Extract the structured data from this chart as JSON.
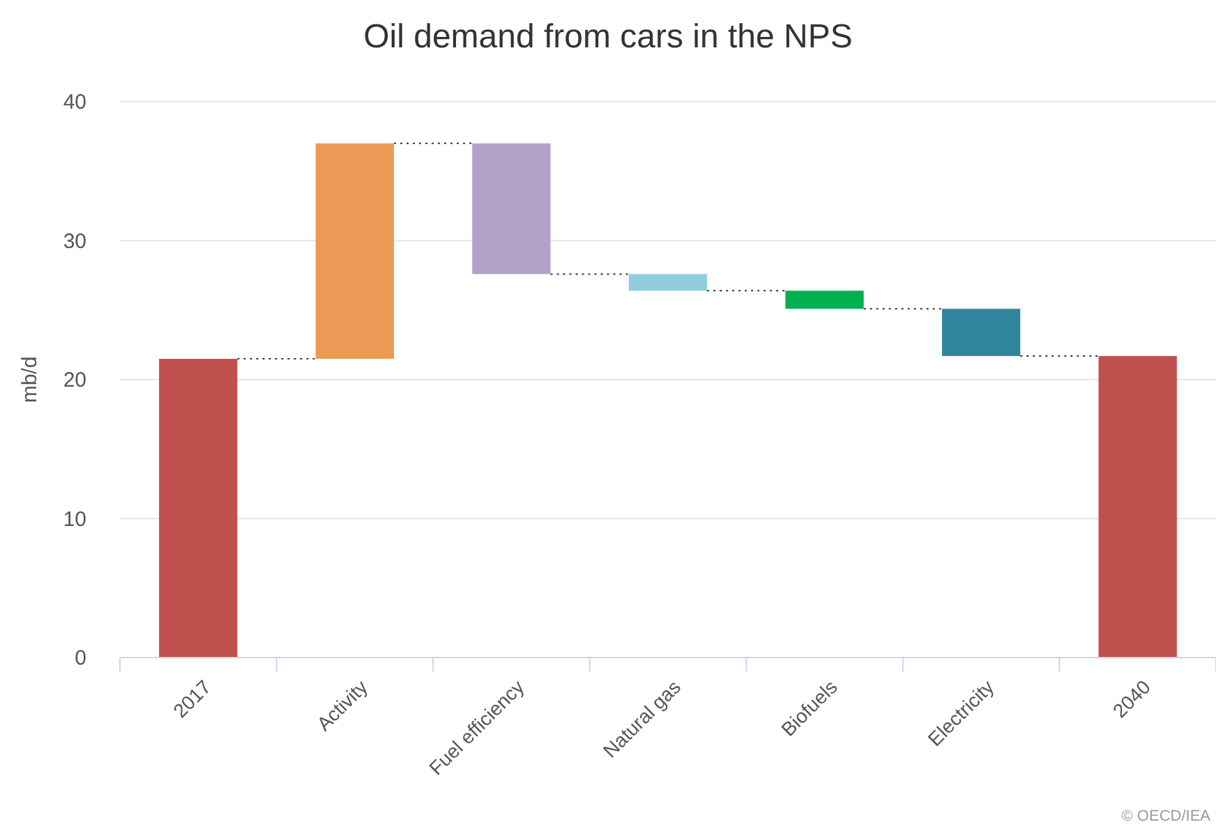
{
  "chart_data": {
    "type": "bar",
    "title": "Oil demand from cars in the NPS",
    "ylabel": "mb/d",
    "categories": [
      "2017",
      "Activity",
      "Fuel efficiency",
      "Natural gas",
      "Biofuels",
      "Electricity",
      "2040"
    ],
    "values": [
      21.5,
      15.5,
      -9.4,
      -1.2,
      -1.3,
      -3.4,
      21.7
    ],
    "base": [
      0,
      21.5,
      37,
      27.6,
      26.4,
      25.1,
      0
    ],
    "colors": [
      "#c0504d",
      "#eb9a55",
      "#b1a1c8",
      "#92cddd",
      "#00b050",
      "#31859c",
      "#c0504d"
    ],
    "ylim": [
      0,
      40
    ],
    "yticks": [
      0,
      10,
      20,
      30,
      40
    ],
    "grid": "y",
    "annotations": [
      "© OECD/IEA"
    ]
  }
}
